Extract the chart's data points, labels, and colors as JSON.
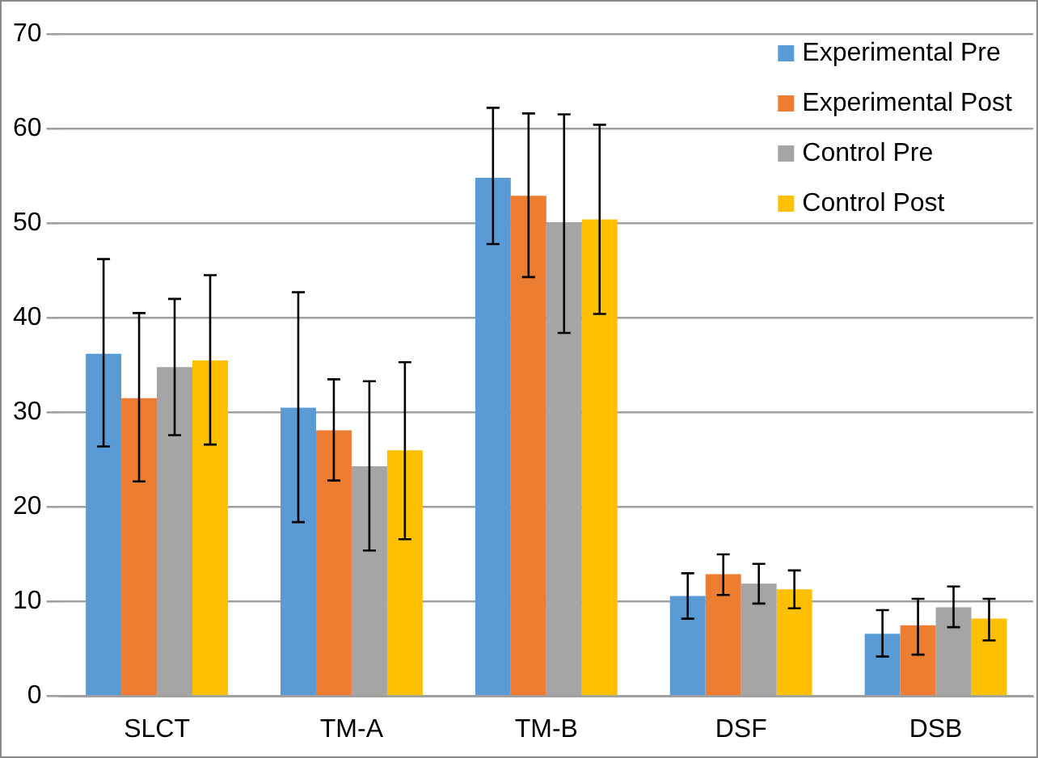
{
  "chart_data": {
    "type": "bar",
    "categories": [
      "SLCT",
      "TM-A",
      "TM-B",
      "DSF",
      "DSB"
    ],
    "series": [
      {
        "name": "Experimental Pre",
        "color": "#5b9bd5",
        "values": [
          36.2,
          30.5,
          54.8,
          10.6,
          6.6
        ],
        "errors": [
          [
            26.4,
            46.2
          ],
          [
            18.4,
            42.7
          ],
          [
            47.8,
            62.2
          ],
          [
            8.2,
            13.0
          ],
          [
            4.2,
            9.1
          ]
        ]
      },
      {
        "name": "Experimental Post",
        "color": "#ed7d31",
        "values": [
          31.5,
          28.1,
          52.9,
          12.9,
          7.5
        ],
        "errors": [
          [
            22.7,
            40.5
          ],
          [
            22.8,
            33.5
          ],
          [
            44.3,
            61.6
          ],
          [
            10.7,
            15.0
          ],
          [
            4.4,
            10.3
          ]
        ]
      },
      {
        "name": "Control Pre",
        "color": "#a5a5a5",
        "values": [
          34.8,
          24.3,
          50.0,
          11.9,
          9.4
        ],
        "errors": [
          [
            27.6,
            42.0
          ],
          [
            15.4,
            33.3
          ],
          [
            38.4,
            61.5
          ],
          [
            9.8,
            14.0
          ],
          [
            7.3,
            11.6
          ]
        ]
      },
      {
        "name": "Control Post",
        "color": "#ffc000",
        "values": [
          35.5,
          26.0,
          50.4,
          11.3,
          8.2
        ],
        "errors": [
          [
            26.6,
            44.5
          ],
          [
            16.6,
            35.3
          ],
          [
            40.4,
            60.4
          ],
          [
            9.3,
            13.3
          ],
          [
            5.9,
            10.3
          ]
        ]
      }
    ],
    "ylim": [
      0,
      70
    ],
    "yticks": [
      0,
      10,
      20,
      30,
      40,
      50,
      60,
      70
    ],
    "grid": "y",
    "legend": "top right"
  }
}
